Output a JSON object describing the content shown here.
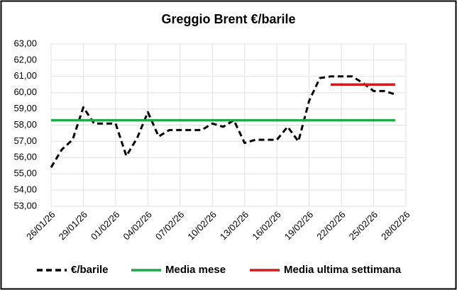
{
  "chart_data": {
    "type": "line",
    "title": "Greggio Brent €/barile",
    "series": [
      {
        "name": "€/barile",
        "color": "#000000",
        "dash": true,
        "x": [
          "26/01/26",
          "27/01/26",
          "28/01/26",
          "29/01/26",
          "30/01/26",
          "31/01/26",
          "01/02/26",
          "02/02/26",
          "03/02/26",
          "04/02/26",
          "05/02/26",
          "06/02/26",
          "07/02/26",
          "08/02/26",
          "09/02/26",
          "10/02/26",
          "11/02/26",
          "12/02/26",
          "13/02/26",
          "14/02/26",
          "15/02/26",
          "16/02/26",
          "17/02/26",
          "18/02/26",
          "19/02/26",
          "20/02/26",
          "21/02/26",
          "22/02/26",
          "23/02/26",
          "24/02/26",
          "25/02/26",
          "26/02/26",
          "27/02/26"
        ],
        "values": [
          55.4,
          56.5,
          57.1,
          59.1,
          58.1,
          58.1,
          58.1,
          56.1,
          57.2,
          58.8,
          57.3,
          57.7,
          57.7,
          57.7,
          57.7,
          58.1,
          57.9,
          58.3,
          56.9,
          57.1,
          57.1,
          57.1,
          57.9,
          57.0,
          59.5,
          60.9,
          61.0,
          61.0,
          61.0,
          60.6,
          60.1,
          60.1,
          59.9
        ]
      },
      {
        "name": "Media mese",
        "color": "#22a84b",
        "dash": false,
        "x": [
          "26/01/26",
          "27/02/26"
        ],
        "values": [
          58.3,
          58.3
        ]
      },
      {
        "name": "Media ultima settimana",
        "color": "#d01c1c",
        "dash": false,
        "x": [
          "21/02/26",
          "27/02/26"
        ],
        "values": [
          60.5,
          60.5
        ]
      }
    ],
    "xlim": [
      "26/01/26",
      "28/02/26"
    ],
    "xticks": [
      "26/01/26",
      "29/01/26",
      "01/02/26",
      "04/02/26",
      "07/02/26",
      "10/02/26",
      "13/02/26",
      "16/02/26",
      "19/02/26",
      "22/02/26",
      "25/02/26",
      "28/02/26"
    ],
    "ylim": [
      53,
      63
    ],
    "yticks": [
      {
        "value": 53,
        "label": "53,00"
      },
      {
        "value": 54,
        "label": "54,00"
      },
      {
        "value": 55,
        "label": "55,00"
      },
      {
        "value": 56,
        "label": "56,00"
      },
      {
        "value": 57,
        "label": "57,00"
      },
      {
        "value": 58,
        "label": "58,00"
      },
      {
        "value": 59,
        "label": "59,00"
      },
      {
        "value": 60,
        "label": "60,00"
      },
      {
        "value": 61,
        "label": "61,00"
      },
      {
        "value": 62,
        "label": "62,00"
      },
      {
        "value": 63,
        "label": "63,00"
      }
    ],
    "grid": true,
    "legend": "bottom"
  }
}
